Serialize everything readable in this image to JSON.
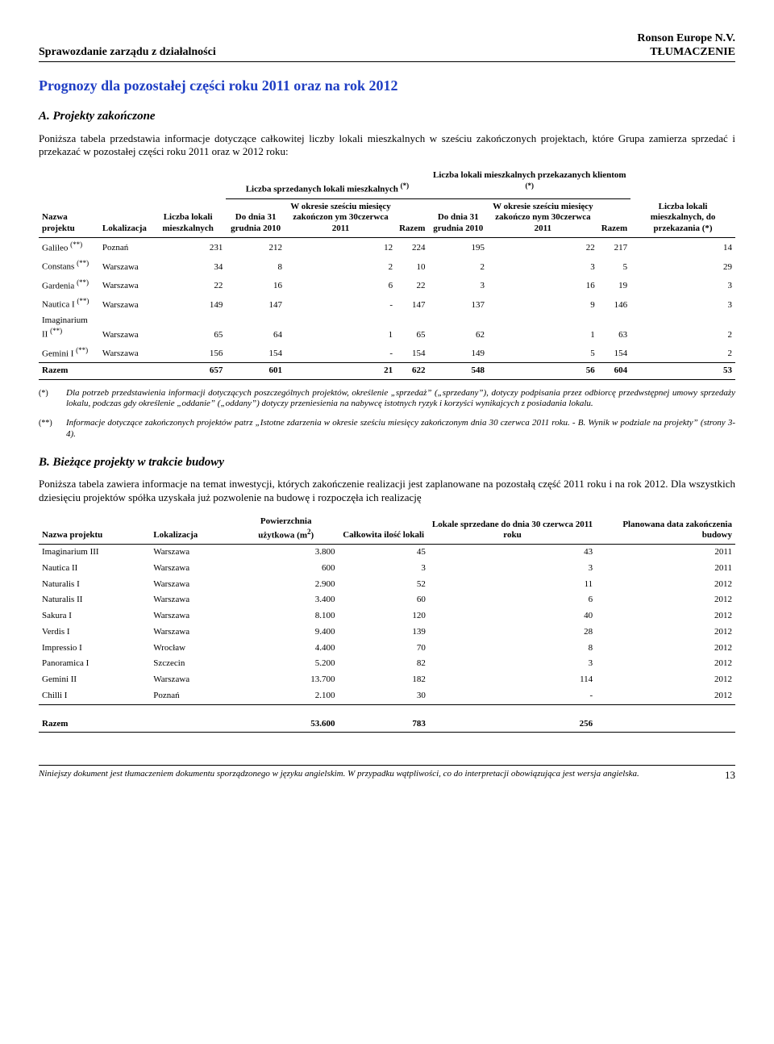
{
  "header": {
    "left": "Sprawozdanie zarządu z działalności",
    "right_line1": "Ronson Europe N.V.",
    "right_line2": "TŁUMACZENIE"
  },
  "title_main": "Prognozy dla pozostałej części roku 2011 oraz na rok 2012",
  "sectionA": {
    "heading": "A. Projekty zakończone",
    "para": "Poniższa tabela przedstawia informacje dotyczące całkowitej liczby lokali mieszkalnych w sześciu zakończonych projektach, które Grupa zamierza sprzedać i przekazać w pozostałej części roku 2011 oraz w 2012 roku:"
  },
  "tableA": {
    "head": {
      "c1": "Nazwa projektu",
      "c2": "Lokalizacja",
      "c3": "Liczba lokali mieszkalnych",
      "g1_top": "Liczba sprzedanych lokali mieszkalnych",
      "g1_sup": "(*)",
      "g1_c1": "Do dnia 31 grudnia 2010",
      "g1_c2": "W okresie sześciu miesięcy zakończon ym 30czerwca 2011",
      "g1_c3": "Razem",
      "g2_top": "Liczba lokali mieszkalnych przekazanych klientom",
      "g2_sup": "(*)",
      "g2_c1": "Do dnia 31 grudnia 2010",
      "g2_c2": "W okresie sześciu miesięcy zakończo nym 30czerwca 2011",
      "g2_c3": "Razem",
      "c10": "Liczba lokali mieszkalnych, do przekazania (*)"
    },
    "rows": [
      {
        "p": "Galileo",
        "sup": "(**)",
        "loc": "Poznań",
        "v": [
          "231",
          "212",
          "12",
          "224",
          "195",
          "22",
          "217",
          "14"
        ]
      },
      {
        "p": "Constans",
        "sup": "(**)",
        "loc": "Warszawa",
        "v": [
          "34",
          "8",
          "2",
          "10",
          "2",
          "3",
          "5",
          "29"
        ]
      },
      {
        "p": "Gardenia",
        "sup": "(**)",
        "loc": "Warszawa",
        "v": [
          "22",
          "16",
          "6",
          "22",
          "3",
          "16",
          "19",
          "3"
        ]
      },
      {
        "p": "Nautica I",
        "sup": "(**)",
        "loc": "Warszawa",
        "v": [
          "149",
          "147",
          "-",
          "147",
          "137",
          "9",
          "146",
          "3"
        ]
      },
      {
        "p": "Imaginarium II",
        "sup": "(**)",
        "loc": "Warszawa",
        "v": [
          "65",
          "64",
          "1",
          "65",
          "62",
          "1",
          "63",
          "2"
        ]
      },
      {
        "p": "Gemini I",
        "sup": "(**)",
        "loc": "Warszawa",
        "v": [
          "156",
          "154",
          "-",
          "154",
          "149",
          "5",
          "154",
          "2"
        ]
      }
    ],
    "total": {
      "label": "Razem",
      "v": [
        "657",
        "601",
        "21",
        "622",
        "548",
        "56",
        "604",
        "53"
      ]
    }
  },
  "notes": {
    "m1": "(*)",
    "t1": "Dla potrzeb przedstawienia informacji dotyczących poszczególnych projektów, określenie „sprzedaż” („sprzedany”), dotyczy podpisania przez odbiorcę przedwstępnej umowy sprzedaży lokalu, podczas gdy określenie „oddanie” („oddany”) dotyczy przeniesienia na nabywcę istotnych ryzyk i korzyści wynikajcych z posiadania lokalu.",
    "m2": "(**)",
    "t2": "Informacje dotyczące zakończonych projektów patrz „Istotne zdarzenia w okresie sześciu miesięcy zakończonym dnia 30 czerwca 2011 roku. - B. Wynik w podziale na projekty” (strony 3-4)."
  },
  "sectionB": {
    "heading": "B. Bieżące projekty w trakcie budowy",
    "para": "Poniższa tabela zawiera informacje na temat inwestycji, których zakończenie realizacji jest zaplanowane na pozostałą część 2011 roku i na rok 2012. Dla wszystkich dziesięciu projektów spółka uzyskała już pozwolenie na budowę i rozpoczęła ich realizację"
  },
  "tableB": {
    "head": {
      "c1": "Nazwa projektu",
      "c2": "Lokalizacja",
      "c3_l1": "Powierzchnia",
      "c3_l2": "użytkowa (m",
      "c3_sup": "2",
      "c3_close": ")",
      "c4": "Całkowita ilość lokali",
      "c5": "Lokale sprzedane do dnia 30 czerwca 2011 roku",
      "c6": "Planowana data zakończenia budowy"
    },
    "rows": [
      {
        "p": "Imaginarium III",
        "loc": "Warszawa",
        "v": [
          "3.800",
          "45",
          "43",
          "2011"
        ]
      },
      {
        "p": "Nautica II",
        "loc": "Warszawa",
        "v": [
          "600",
          "3",
          "3",
          "2011"
        ]
      },
      {
        "p": "Naturalis I",
        "loc": "Warszawa",
        "v": [
          "2.900",
          "52",
          "11",
          "2012"
        ]
      },
      {
        "p": "Naturalis II",
        "loc": "Warszawa",
        "v": [
          "3.400",
          "60",
          "6",
          "2012"
        ]
      },
      {
        "p": "Sakura I",
        "loc": "Warszawa",
        "v": [
          "8.100",
          "120",
          "40",
          "2012"
        ]
      },
      {
        "p": "Verdis I",
        "loc": "Warszawa",
        "v": [
          "9.400",
          "139",
          "28",
          "2012"
        ]
      },
      {
        "p": "Impressio I",
        "loc": "Wrocław",
        "v": [
          "4.400",
          "70",
          "8",
          "2012"
        ]
      },
      {
        "p": "Panoramica I",
        "loc": "Szczecin",
        "v": [
          "5.200",
          "82",
          "3",
          "2012"
        ]
      },
      {
        "p": "Gemini II",
        "loc": "Warszawa",
        "v": [
          "13.700",
          "182",
          "114",
          "2012"
        ]
      },
      {
        "p": "Chilli I",
        "loc": "Poznań",
        "v": [
          "2.100",
          "30",
          "-",
          "2012"
        ]
      }
    ],
    "total": {
      "label": "Razem",
      "v": [
        "53.600",
        "783",
        "256",
        ""
      ]
    }
  },
  "footer": {
    "text": "Niniejszy dokument jest tłumaczeniem dokumentu sporządzonego w języku angielskim. W przypadku wątpliwości, co do interpretacji obowiązująca jest wersja angielska.",
    "page": "13"
  }
}
